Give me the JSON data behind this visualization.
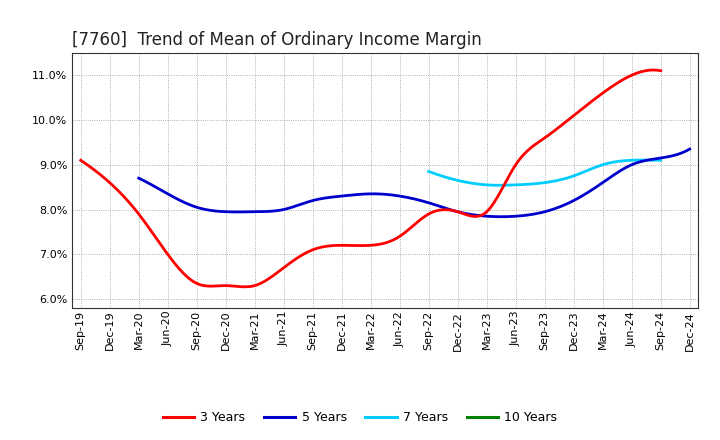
{
  "title": "[7760]  Trend of Mean of Ordinary Income Margin",
  "x_labels": [
    "Sep-19",
    "Dec-19",
    "Mar-20",
    "Jun-20",
    "Sep-20",
    "Dec-20",
    "Mar-21",
    "Jun-21",
    "Sep-21",
    "Dec-21",
    "Mar-22",
    "Jun-22",
    "Sep-22",
    "Dec-22",
    "Mar-23",
    "Jun-23",
    "Sep-23",
    "Dec-23",
    "Mar-24",
    "Jun-24",
    "Sep-24",
    "Dec-24"
  ],
  "ylim": [
    0.058,
    0.115
  ],
  "yticks": [
    0.06,
    0.07,
    0.08,
    0.09,
    0.1,
    0.11
  ],
  "series_3y": {
    "color": "#ff0000",
    "label": "3 Years",
    "x": [
      0,
      1,
      2,
      3,
      4,
      5,
      6,
      7,
      8,
      9,
      10,
      11,
      12,
      13,
      14,
      15,
      16,
      17,
      18,
      19,
      20
    ],
    "y": [
      0.091,
      0.086,
      0.079,
      0.07,
      0.0635,
      0.063,
      0.063,
      0.067,
      0.071,
      0.072,
      0.072,
      0.074,
      0.079,
      0.0795,
      0.0795,
      0.09,
      0.096,
      0.101,
      0.106,
      0.11,
      0.111
    ]
  },
  "series_5y": {
    "color": "#0000cc",
    "label": "5 Years",
    "x": [
      2,
      3,
      4,
      5,
      6,
      7,
      8,
      9,
      10,
      11,
      12,
      13,
      14,
      15,
      16,
      17,
      18,
      19,
      20,
      21
    ],
    "y": [
      0.087,
      0.0835,
      0.0805,
      0.0795,
      0.0795,
      0.08,
      0.082,
      0.083,
      0.0835,
      0.083,
      0.0815,
      0.0795,
      0.0785,
      0.0785,
      0.0795,
      0.082,
      0.086,
      0.09,
      0.0915,
      0.0935
    ]
  },
  "series_7y": {
    "color": "#00ccff",
    "label": "7 Years",
    "x": [
      12,
      13,
      14,
      15,
      16,
      17,
      18,
      19,
      20
    ],
    "y": [
      0.0885,
      0.0865,
      0.0855,
      0.0855,
      0.086,
      0.0875,
      0.09,
      0.091,
      0.091
    ]
  },
  "series_10y": {
    "color": "#008000",
    "label": "10 Years",
    "x": [],
    "y": []
  },
  "background_color": "#ffffff",
  "grid_color": "#999999",
  "title_fontsize": 12,
  "tick_fontsize": 8,
  "legend_fontsize": 9,
  "linewidth": 2.0
}
